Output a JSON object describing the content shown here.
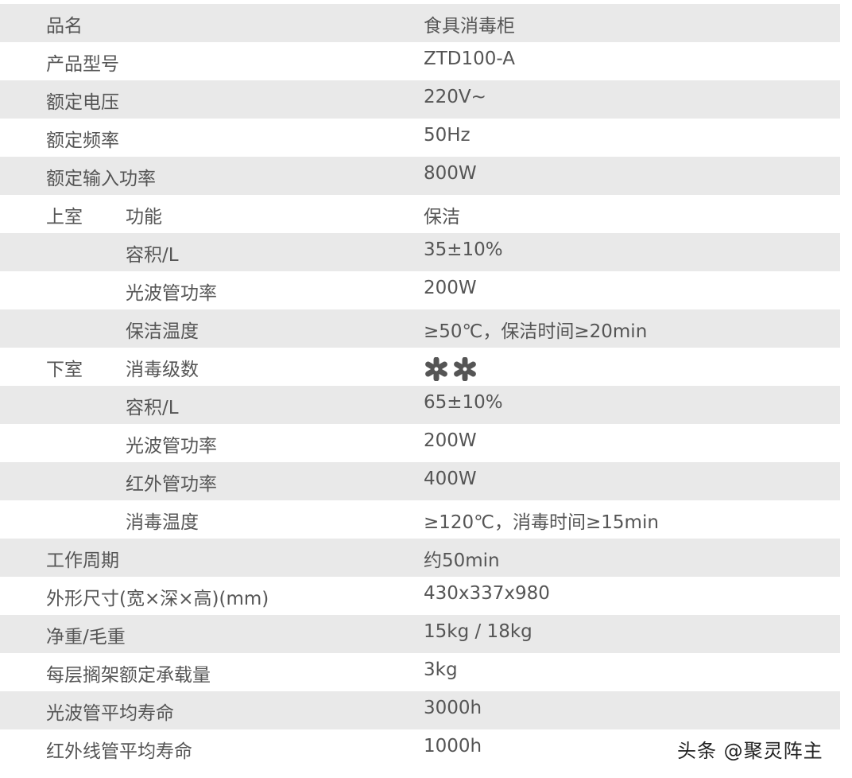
{
  "rows": [
    {
      "group": "品名",
      "label": "",
      "value": "食具消毒柜"
    },
    {
      "group": "产品型号",
      "label": "",
      "value": "ZTD100-A"
    },
    {
      "group": "额定电压",
      "label": "",
      "value": "220V~"
    },
    {
      "group": "额定频率",
      "label": "",
      "value": "50Hz"
    },
    {
      "group": "额定输入功率",
      "label": "",
      "value": "800W"
    },
    {
      "group": "上室",
      "label": "功能",
      "value": "保洁"
    },
    {
      "group": "",
      "label": "容积/L",
      "value": "35±10%"
    },
    {
      "group": "",
      "label": "光波管功率",
      "value": "200W"
    },
    {
      "group": "",
      "label": "保洁温度",
      "value": "≥50℃，保洁时间≥20min"
    },
    {
      "group": "下室",
      "label": "消毒级数",
      "value": ""
    },
    {
      "group": "",
      "label": "容积/L",
      "value": "65±10%"
    },
    {
      "group": "",
      "label": "光波管功率",
      "value": "200W"
    },
    {
      "group": "",
      "label": "红外管功率",
      "value": "400W"
    },
    {
      "group": "",
      "label": "消毒温度",
      "value": "≥120℃，消毒时间≥15min"
    },
    {
      "group": "工作周期",
      "label": "",
      "value": "约50min"
    },
    {
      "group": "外形尺寸(宽×深×高)(mm)",
      "label": "",
      "value": "430x337x980"
    },
    {
      "group": "净重/毛重",
      "label": "",
      "value": "15kg / 18kg"
    },
    {
      "group": "每层搁架额定承载量",
      "label": "",
      "value": "3kg"
    },
    {
      "group": "光波管平均寿命",
      "label": "",
      "value": "3000h"
    },
    {
      "group": "红外线管平均寿命",
      "label": "",
      "value": "1000h"
    }
  ],
  "sterilization_level": {
    "icon": "star-asterisk-icon",
    "count": 2,
    "color": "#555555"
  },
  "watermark": "头条 @聚灵阵主",
  "colors": {
    "shade": "#e9e9e9",
    "text": "#555555"
  }
}
